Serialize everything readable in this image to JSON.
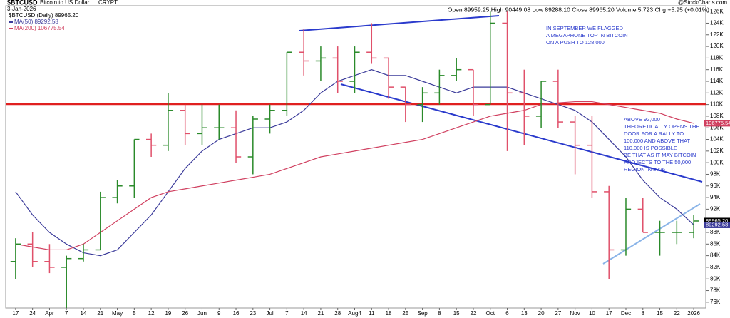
{
  "chart_data": {
    "type": "ohlc",
    "symbol": "$BTCUSD",
    "title": "Bitcoin to US Dollar",
    "exchange": "CRYPT",
    "date": "3-Jan-2026",
    "watermark": "@StockCharts.com",
    "quote": "Open 89959.25 High 90449.08 Low 89288.10 Close 89965.20 Volume 5,723 Chg +5.95 (+0.01%)",
    "price_legend": "$BTCUSD (Daily) 89965.20",
    "last_labels": [
      {
        "label": "89965.20",
        "value": 89965.2,
        "color": "#000000"
      },
      {
        "label": "89292.58",
        "value": 89292.58,
        "color": "#3b3b9a"
      },
      {
        "label": "106775.54",
        "value": 106775.54,
        "color": "#d04060"
      }
    ],
    "categories": [
      "17",
      "24",
      "Apr",
      "7",
      "14",
      "21",
      "May",
      "5",
      "12",
      "19",
      "26",
      "Jun",
      "9",
      "16",
      "23",
      "Jul",
      "7",
      "14",
      "21",
      "28",
      "Aug4",
      "11",
      "18",
      "25",
      "Sep",
      "8",
      "15",
      "22",
      "Oct",
      "6",
      "13",
      "20",
      "27",
      "Nov",
      "10",
      "17",
      "Dec",
      "8",
      "15",
      "22",
      "2026"
    ],
    "open": [
      83000,
      86000,
      83000,
      82000,
      83500,
      85000,
      94000,
      96000,
      104000,
      103000,
      109000,
      105000,
      106000,
      106000,
      101000,
      107500,
      109000,
      119000,
      117500,
      118000,
      114000,
      119000,
      118000,
      113000,
      110000,
      112000,
      115000,
      116000,
      110000,
      124000,
      112000,
      108000,
      114000,
      107000,
      103000,
      95000,
      85000,
      92000,
      88000,
      88000,
      88000
    ],
    "high": [
      87000,
      88000,
      86000,
      84000,
      86000,
      95000,
      97000,
      104000,
      105000,
      112000,
      110000,
      110000,
      110000,
      109000,
      108000,
      110000,
      119000,
      123000,
      120000,
      120000,
      120000,
      124000,
      118000,
      113000,
      113000,
      116000,
      118000,
      116000,
      126000,
      126000,
      116000,
      114000,
      116000,
      108000,
      108000,
      96000,
      94000,
      94000,
      90000,
      90000,
      91000
    ],
    "low": [
      80000,
      82000,
      81000,
      75000,
      83000,
      85000,
      93000,
      94000,
      101000,
      102000,
      103000,
      103000,
      104000,
      100000,
      98000,
      105000,
      108000,
      115000,
      114000,
      112000,
      112000,
      117000,
      111000,
      107000,
      107000,
      110000,
      114000,
      108000,
      110000,
      102000,
      103000,
      106000,
      106000,
      98000,
      94000,
      80000,
      84000,
      88000,
      84000,
      86000,
      87000
    ],
    "close": [
      86000,
      83000,
      82000,
      83500,
      85000,
      94000,
      96000,
      104000,
      103000,
      109000,
      105000,
      106000,
      106000,
      101000,
      107500,
      109000,
      119000,
      117500,
      118000,
      114000,
      119000,
      118000,
      113000,
      110000,
      112000,
      115000,
      116000,
      110000,
      124000,
      112000,
      108000,
      114000,
      107000,
      103000,
      95000,
      85000,
      92000,
      88000,
      88000,
      88000,
      89965.2
    ],
    "up_color": "#2a8a2a",
    "down_color": "#e0506a",
    "series": [
      {
        "name": "MA(50) 89292.58",
        "color": "#3b3b9a",
        "values": [
          95000,
          91000,
          88000,
          86000,
          84500,
          84000,
          85000,
          88000,
          91000,
          95000,
          99000,
          102000,
          104000,
          105000,
          106000,
          106000,
          107000,
          109000,
          112000,
          114000,
          115000,
          116000,
          115000,
          115000,
          114000,
          113000,
          112000,
          113000,
          113000,
          113000,
          112000,
          111000,
          110000,
          109000,
          107000,
          104000,
          101000,
          97000,
          94000,
          92000,
          89292.58
        ]
      },
      {
        "name": "MA(200) 106775.54",
        "color": "#d04060",
        "values": [
          86000,
          85500,
          85000,
          85000,
          86000,
          88000,
          90000,
          92000,
          94000,
          95000,
          95500,
          96000,
          96500,
          97000,
          97500,
          98000,
          99000,
          100000,
          101000,
          101500,
          102000,
          102500,
          103000,
          103500,
          104000,
          105000,
          106000,
          107000,
          108000,
          108500,
          109000,
          110000,
          110300,
          110500,
          110500,
          110000,
          109500,
          109000,
          108500,
          107500,
          106775.54
        ]
      }
    ],
    "ylim": [
      75000,
      127000
    ],
    "yticks": [
      {
        "value": 76000,
        "label": "76K"
      },
      {
        "value": 78000,
        "label": "78K"
      },
      {
        "value": 80000,
        "label": "80K"
      },
      {
        "value": 82000,
        "label": "82K"
      },
      {
        "value": 84000,
        "label": "84K"
      },
      {
        "value": 86000,
        "label": "86K"
      },
      {
        "value": 88000,
        "label": "88K"
      },
      {
        "value": 90000,
        "label": "90K"
      },
      {
        "value": 92000,
        "label": "92K"
      },
      {
        "value": 94000,
        "label": "94K"
      },
      {
        "value": 96000,
        "label": "96K"
      },
      {
        "value": 98000,
        "label": "98K"
      },
      {
        "value": 100000,
        "label": "100K"
      },
      {
        "value": 102000,
        "label": "102K"
      },
      {
        "value": 104000,
        "label": "104K"
      },
      {
        "value": 106000,
        "label": "106K"
      },
      {
        "value": 108000,
        "label": "108K"
      },
      {
        "value": 110000,
        "label": "110K"
      },
      {
        "value": 112000,
        "label": "112K"
      },
      {
        "value": 114000,
        "label": "114K"
      },
      {
        "value": 116000,
        "label": "116K"
      },
      {
        "value": 118000,
        "label": "118K"
      },
      {
        "value": 120000,
        "label": "120K"
      },
      {
        "value": 122000,
        "label": "122K"
      },
      {
        "value": 124000,
        "label": "124K"
      },
      {
        "value": 126000,
        "label": "126K"
      }
    ],
    "annotations": [
      {
        "lines": [
          "IN SEPTEMBER WE FLAGGED",
          "A MEGAPHONE TOP IN BITCOIN",
          "ON A PUSH TO 128,000"
        ]
      },
      {
        "lines": [
          "ABOVE 92,000",
          "THEORETICALLY OPENS THE",
          "DOOR FOR A RALLY TO",
          "100,000 AND ABOVE THAT",
          "110,000 IS POSSIBLE",
          "BE THAT AS IT MAY BITCOIN",
          "PROJECTS TO THE 50,000",
          "REGION IN 2026"
        ]
      }
    ]
  }
}
